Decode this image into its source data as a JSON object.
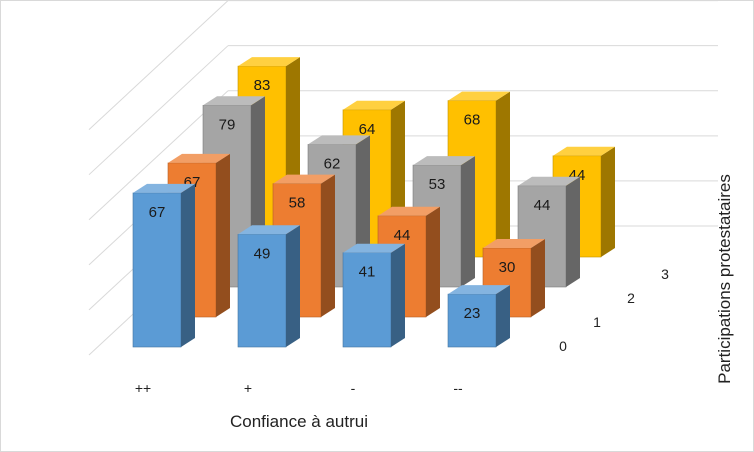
{
  "chart_data": {
    "type": "bar",
    "subtype": "3d-column",
    "title": "",
    "xlabel": "Confiance à autrui",
    "zlabel": "Participations protestataires",
    "categories": [
      "++",
      "+",
      "-",
      "--"
    ],
    "series": [
      {
        "name": "0",
        "color": "#5B9BD5",
        "values": [
          67,
          49,
          41,
          23
        ]
      },
      {
        "name": "1",
        "color": "#ED7D31",
        "values": [
          67,
          58,
          44,
          30
        ]
      },
      {
        "name": "2",
        "color": "#A5A5A5",
        "values": [
          79,
          62,
          53,
          44
        ]
      },
      {
        "name": "3",
        "color": "#FFC000",
        "values": [
          83,
          64,
          68,
          44
        ]
      }
    ],
    "ylim": [
      0,
      100
    ],
    "grid": true,
    "legend": "none"
  }
}
